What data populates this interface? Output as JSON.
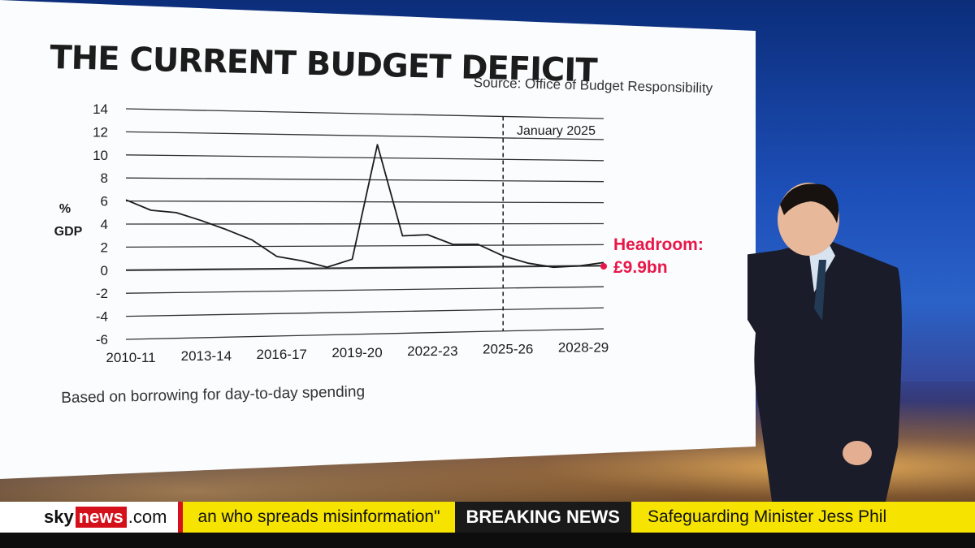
{
  "board": {
    "title": "THE CURRENT BUDGET DEFICIT",
    "source": "Source: Office of Budget Responsibility",
    "footnote": "Based on borrowing for day-to-day spending",
    "ylabel_line1": "%",
    "ylabel_line2": "GDP",
    "marker_label": "January 2025",
    "headroom_label": "Headroom:",
    "headroom_value": "£9.9bn"
  },
  "chart_data": {
    "type": "line",
    "title": "THE CURRENT BUDGET DEFICIT",
    "ylabel": "% GDP",
    "ylim": [
      -6,
      14
    ],
    "yticks": [
      -6,
      -4,
      -2,
      0,
      2,
      4,
      6,
      8,
      10,
      12,
      14
    ],
    "xlim": [
      2010,
      2029
    ],
    "xtick_labels": [
      "2010-11",
      "2013-14",
      "2016-17",
      "2019-20",
      "2022-23",
      "2025-26",
      "2028-29"
    ],
    "xtick_years": [
      2010,
      2013,
      2016,
      2019,
      2022,
      2025,
      2028
    ],
    "grid": true,
    "vertical_marker": {
      "label": "January 2025",
      "x": 2025
    },
    "series": [
      {
        "x": [
          2010,
          2011,
          2012,
          2013,
          2014,
          2015,
          2016,
          2017,
          2018,
          2019,
          2020,
          2021,
          2022,
          2023,
          2024,
          2025,
          2026,
          2027,
          2028,
          2029
        ],
        "values": [
          6.1,
          5.2,
          5.0,
          4.3,
          3.5,
          2.6,
          1.1,
          0.7,
          0.1,
          0.8,
          11.2,
          2.9,
          3.0,
          2.1,
          2.1,
          1.0,
          0.3,
          -0.1,
          0.0,
          0.3
        ]
      }
    ]
  },
  "ticker": {
    "logo_sky": "sky",
    "logo_news": "news",
    "logo_com": ".com",
    "scroll_text": "an who spreads misinformation\"",
    "breaking_label": "BREAKING NEWS",
    "tail_text": "Safeguarding Minister Jess Phil"
  },
  "colors": {
    "accent_red": "#e8174a",
    "ticker_yellow": "#f6e400",
    "sky_red": "#d4101a"
  }
}
